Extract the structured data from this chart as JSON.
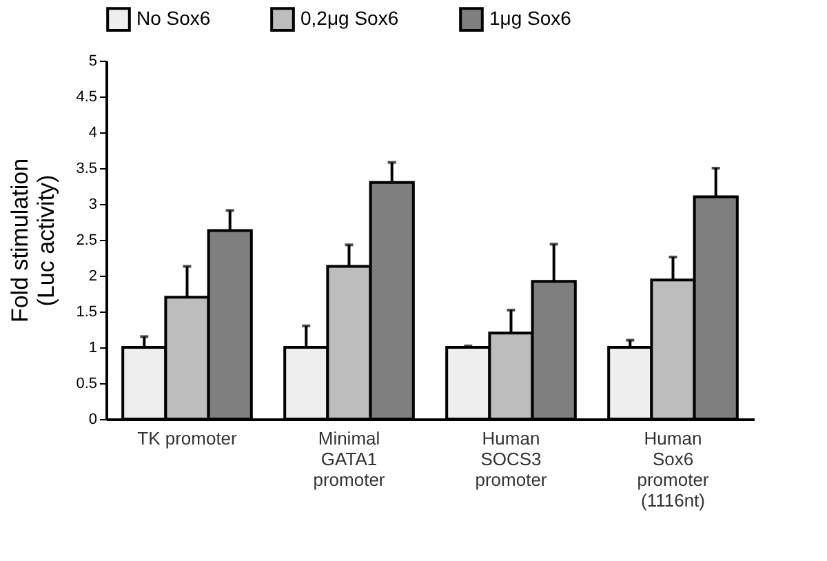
{
  "chart_data": {
    "type": "bar",
    "categories": [
      "TK promoter",
      "Minimal\nGATA1\npromoter",
      "Human\nSOCS3\npromoter",
      "Human\nSox6\npromoter\n(1116nt)"
    ],
    "series": [
      {
        "name": "No Sox6",
        "color": "#eeeeee",
        "values": [
          1.0,
          1.0,
          1.0,
          1.0
        ],
        "errors": [
          [
            1.0,
            1.15
          ],
          [
            1.0,
            1.3
          ],
          [
            1.0,
            1.02
          ],
          [
            1.0,
            1.1
          ]
        ]
      },
      {
        "name": "0,2μg Sox6",
        "color": "#bdbdbd",
        "values": [
          1.7,
          2.13,
          1.2,
          1.94
        ],
        "errors": [
          [
            1.7,
            2.13
          ],
          [
            2.13,
            2.43
          ],
          [
            1.2,
            1.52
          ],
          [
            1.94,
            2.26
          ]
        ]
      },
      {
        "name": "1μg Sox6",
        "color": "#7f7f7f",
        "values": [
          2.63,
          3.3,
          1.92,
          3.1
        ],
        "errors": [
          [
            2.63,
            2.91
          ],
          [
            3.3,
            3.58
          ],
          [
            1.92,
            2.44
          ],
          [
            3.1,
            3.5
          ]
        ]
      }
    ],
    "ylabel": "Fold stimulation\n(Luc activity)",
    "ylim": [
      0,
      5
    ],
    "yticks": [
      0,
      0.5,
      1,
      1.5,
      2,
      2.5,
      3,
      3.5,
      4,
      4.5,
      5
    ],
    "grid": false,
    "legend": "top"
  }
}
